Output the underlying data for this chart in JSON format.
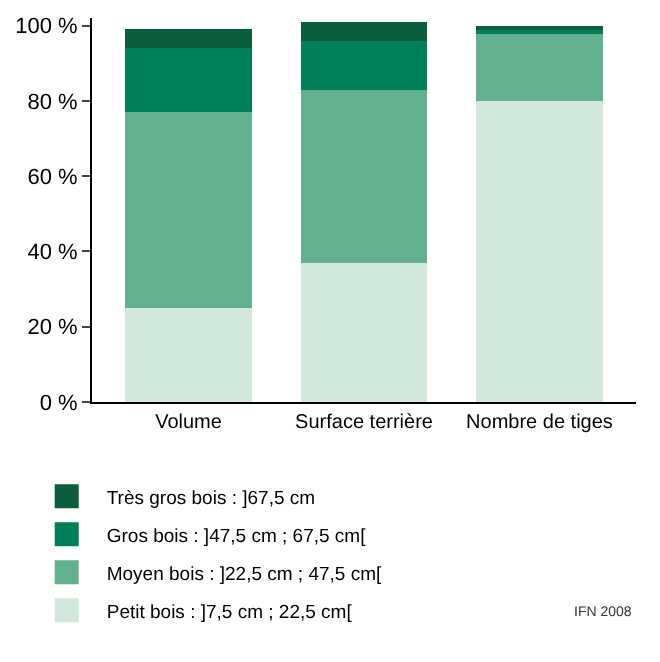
{
  "chart_data": {
    "type": "bar",
    "stacked": true,
    "categories": [
      "Volume",
      "Surface terrière",
      "Nombre de tiges"
    ],
    "series": [
      {
        "name": "Petit bois : ]7,5 cm ; 22,5 cm[",
        "color": "#d2e8dd",
        "values": [
          25,
          37,
          80
        ]
      },
      {
        "name": "Moyen bois : ]22,5 cm ; 47,5 cm[",
        "color": "#63b08e",
        "values": [
          52,
          46,
          18
        ]
      },
      {
        "name": "Gros bois : ]47,5 cm ; 67,5 cm[",
        "color": "#00805a",
        "values": [
          17,
          13,
          1
        ]
      },
      {
        "name": "Très gros bois : ]67,5 cm",
        "color": "#0b5e3d",
        "values": [
          5,
          5,
          1
        ]
      }
    ],
    "ylim": [
      0,
      102
    ],
    "yticks": [
      {
        "value": 0,
        "label": "0 %"
      },
      {
        "value": 20,
        "label": "20 %"
      },
      {
        "value": 40,
        "label": "40 %"
      },
      {
        "value": 60,
        "label": "60 %"
      },
      {
        "value": 80,
        "label": "80 %"
      },
      {
        "value": 100,
        "label": "100 %"
      }
    ],
    "legend": "bottom",
    "annotations": [
      "IFN 2008"
    ]
  }
}
